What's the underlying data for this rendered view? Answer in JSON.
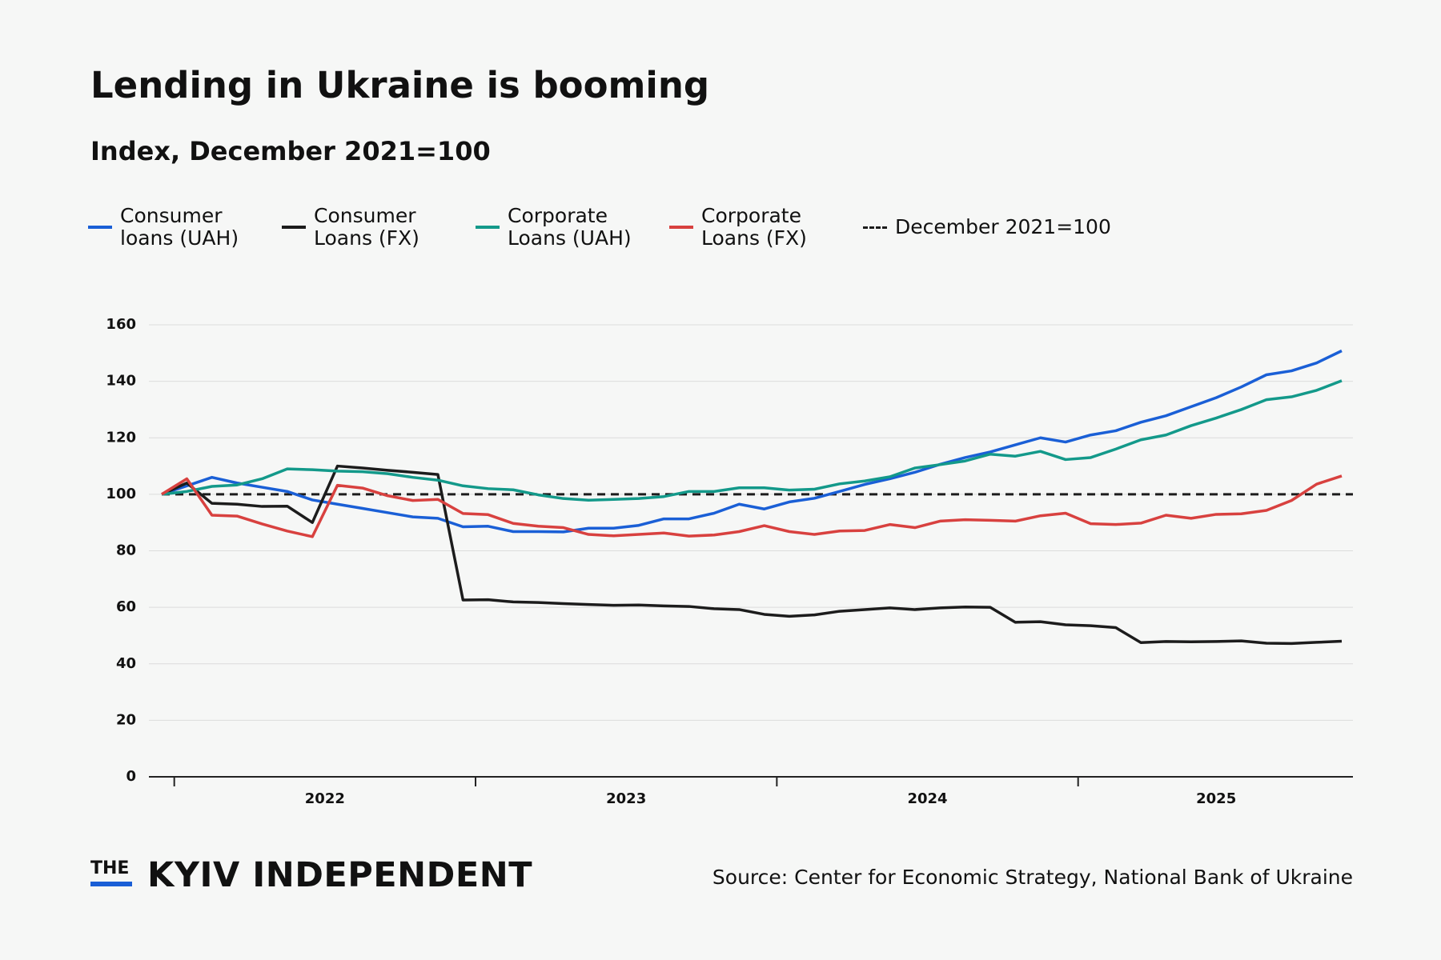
{
  "chart_data": {
    "type": "line",
    "title": "Lending in Ukraine is booming",
    "subtitle": "Index, December 2021=100",
    "categories": [
      null,
      "2022",
      "2022",
      "2022",
      "2022",
      "2022",
      "2022",
      "2022",
      "2022",
      "2022",
      "2022",
      "2022",
      "2022",
      "2023",
      "2023",
      "2023",
      "2023",
      "2023",
      "2023",
      "2023",
      "2023",
      "2023",
      "2023",
      "2023",
      "2023",
      "2024",
      "2024",
      "2024",
      "2024",
      "2024",
      "2024",
      "2024",
      "2024",
      "2024",
      "2024",
      "2024",
      "2024",
      "2025",
      "2025",
      "2025",
      "2025",
      "2025",
      "2025",
      "2025",
      "2025",
      "2025",
      "2025",
      "2025"
    ],
    "series": [
      {
        "name": "Consumer loans (UAH)",
        "color": "#1a5fd6",
        "values": [
          100,
          103,
          106,
          104,
          102.5,
          101,
          98,
          96.5,
          95,
          93.5,
          92,
          91.5,
          88.5,
          88.7,
          86.8,
          86.8,
          86.7,
          88,
          88,
          89,
          91.3,
          91.3,
          93.3,
          96.5,
          94.8,
          97.3,
          98.6,
          101,
          103.5,
          105.5,
          107.8,
          110.6,
          113,
          115,
          117.5,
          120,
          118.5,
          121,
          122.5,
          125.5,
          127.8,
          131,
          134.2,
          138,
          142.3,
          143.7,
          146.5,
          150.8
        ]
      },
      {
        "name": "Consumer Loans (FX)",
        "color": "#1c1c1c",
        "values": [
          100,
          104,
          96.8,
          96.5,
          95.7,
          95.8,
          90,
          110,
          109.3,
          108.5,
          107.8,
          107,
          62.6,
          62.7,
          61.9,
          61.7,
          61.3,
          61,
          60.7,
          60.8,
          60.5,
          60.3,
          59.5,
          59.2,
          57.5,
          56.8,
          57.3,
          58.6,
          59.2,
          59.8,
          59.2,
          59.8,
          60.1,
          60,
          54.7,
          54.9,
          53.8,
          53.5,
          52.8,
          47.5,
          47.9,
          47.8,
          47.9,
          48.1,
          47.3,
          47.2,
          47.6,
          48
        ]
      },
      {
        "name": "Corporate Loans (UAH)",
        "color": "#13998a",
        "values": [
          100,
          101,
          102.8,
          103.3,
          105.5,
          109,
          108.7,
          108.2,
          108,
          107.3,
          106,
          105,
          103,
          102,
          101.6,
          99.8,
          98.5,
          97.9,
          98.2,
          98.5,
          99.2,
          101,
          101,
          102.3,
          102.3,
          101.5,
          101.8,
          103.7,
          104.7,
          106.2,
          109.3,
          110.5,
          111.8,
          114.2,
          113.5,
          115.2,
          112.3,
          113,
          116,
          119.3,
          121,
          124.3,
          127,
          130,
          133.5,
          134.5,
          136.8,
          140.2
        ]
      },
      {
        "name": "Corporate Loans (FX)",
        "color": "#d8413f",
        "values": [
          100,
          105.5,
          92.6,
          92.3,
          89.5,
          87,
          85,
          103.2,
          102.2,
          99.5,
          97.8,
          98.2,
          93.2,
          92.8,
          89.7,
          88.7,
          88.2,
          85.8,
          85.3,
          85.8,
          86.3,
          85.2,
          85.6,
          86.8,
          88.9,
          86.8,
          85.8,
          87,
          87.2,
          89.3,
          88.2,
          90.5,
          91,
          90.8,
          90.5,
          92.4,
          93.3,
          89.6,
          89.3,
          89.8,
          92.6,
          91.5,
          92.9,
          93.1,
          94.3,
          97.8,
          103.6,
          106.5
        ]
      }
    ],
    "reference_line": {
      "name": "December 2021=100",
      "value": 100,
      "color": "#1c1c1c"
    },
    "ylim": [
      0,
      160
    ],
    "yticks": [
      0,
      20,
      40,
      60,
      80,
      100,
      120,
      140,
      160
    ],
    "grid": true
  },
  "footer": {
    "logo_small": "THE",
    "logo": "KYIV INDEPENDENT",
    "source": "Source: Center for Economic Strategy, National Bank of Ukraine"
  }
}
